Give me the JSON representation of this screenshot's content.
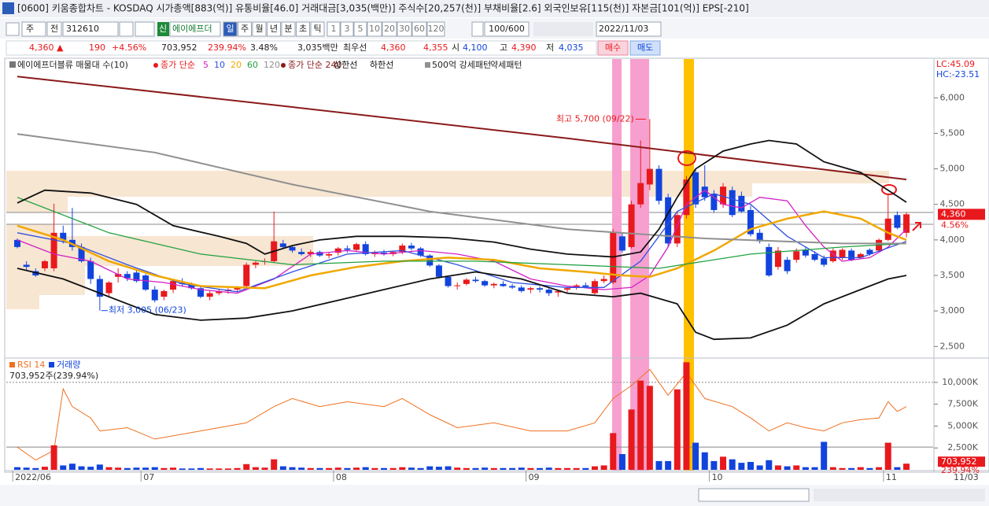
{
  "window": {
    "title": "[0600] 키움종합차트 - KOSDAQ 시가총액[883(억)] 유통비율[46.0] 거래대금[3,035(백만)] 주식수[20,257(천)] 부채비율[2.6] 외국인보유[115(천)] 자본금[101(억)] EPS[-210]"
  },
  "toolbar": {
    "period": "주",
    "scope": "전",
    "code": "312610",
    "new_badge": "신",
    "name": "에이에프더",
    "intervals": [
      "일",
      "주",
      "월",
      "년",
      "분",
      "초",
      "틱"
    ],
    "minutes": [
      "1",
      "3",
      "5",
      "10",
      "20",
      "30",
      "60",
      "120"
    ],
    "count": "100/600",
    "date": "2022/11/03"
  },
  "quote": {
    "price": "4,360",
    "arrow": "▲",
    "change": "190",
    "change_pct": "+4.56%",
    "volume": "703,952",
    "volume_ratio": "239.94%",
    "turnover_rate": "3.48%",
    "amount": "3,035백만",
    "best_label": "최우선",
    "ask": "4,360",
    "bid": "4,355",
    "open_label": "시",
    "open": "4,100",
    "high_label": "고",
    "high": "4,390",
    "low_label": "저",
    "low": "4,035",
    "buy": "매수",
    "sell": "매도"
  },
  "chart_data": [
    {
      "type": "candlestick",
      "legend_title": "에이에프더블류 매물대 수(10)",
      "ma_label": "종가 단순",
      "pattern_labels": [
        "500억 강세패턴",
        "약세패턴"
      ],
      "corner_labels": [
        "LC:45.09",
        "HC:-23.51"
      ],
      "up_color": "#e8191d",
      "down_color": "#1144dd",
      "categories": [
        "2022/06",
        null,
        null,
        null,
        null,
        null,
        null,
        null,
        null,
        null,
        null,
        null,
        null,
        null,
        "07",
        null,
        null,
        null,
        null,
        null,
        null,
        null,
        null,
        null,
        null,
        null,
        null,
        null,
        null,
        null,
        null,
        null,
        null,
        null,
        null,
        "08",
        null,
        null,
        null,
        null,
        null,
        null,
        null,
        null,
        null,
        null,
        null,
        null,
        null,
        null,
        null,
        null,
        null,
        null,
        null,
        null,
        "09",
        null,
        null,
        null,
        null,
        null,
        null,
        null,
        null,
        null,
        null,
        null,
        null,
        null,
        null,
        null,
        null,
        null,
        null,
        null,
        "10",
        null,
        null,
        null,
        null,
        null,
        null,
        null,
        null,
        null,
        null,
        null,
        null,
        null,
        null,
        null,
        null,
        null,
        null,
        "11",
        null,
        null
      ],
      "x_end_label": "11/03",
      "open": [
        4000,
        3650,
        3560,
        3600,
        3600,
        4100,
        4000,
        3900,
        3700,
        3450,
        3250,
        3480,
        3520,
        3540,
        3500,
        3300,
        3200,
        3300,
        3400,
        3380,
        3320,
        3200,
        3250,
        3280,
        3300,
        3350,
        3650,
        3690,
        3700,
        3950,
        3900,
        3830,
        3800,
        3830,
        3780,
        3820,
        3880,
        3860,
        3940,
        3800,
        3820,
        3800,
        3830,
        3920,
        3880,
        3780,
        3640,
        3480,
        3350,
        3380,
        3440,
        3420,
        3360,
        3380,
        3350,
        3330,
        3300,
        3320,
        3300,
        3260,
        3300,
        3330,
        3360,
        3250,
        3420,
        3400,
        4050,
        3900,
        4500,
        4780,
        5000,
        4600,
        3950,
        4350,
        4950,
        4750,
        4650,
        4500,
        4700,
        4620,
        4420,
        4100,
        3900,
        3620,
        3720,
        3720,
        3860,
        3800,
        3740,
        3700,
        3750,
        3850,
        3750,
        3860,
        3850,
        4000,
        4350,
        4100
      ],
      "high": [
        4020,
        3700,
        3600,
        3720,
        4510,
        4200,
        4450,
        3950,
        3750,
        3500,
        3420,
        3600,
        3560,
        3580,
        3520,
        3350,
        3300,
        3420,
        3460,
        3400,
        3340,
        3280,
        3300,
        3320,
        3350,
        3680,
        3700,
        3740,
        4400,
        4000,
        3920,
        3880,
        3860,
        3850,
        3820,
        3900,
        3920,
        3960,
        3980,
        3850,
        3860,
        3840,
        3950,
        3960,
        3900,
        3800,
        3660,
        3500,
        3400,
        3460,
        3480,
        3440,
        3400,
        3420,
        3380,
        3360,
        3340,
        3350,
        3320,
        3300,
        3340,
        3380,
        3400,
        3450,
        3500,
        4150,
        4100,
        4550,
        5400,
        5700,
        5050,
        4650,
        4400,
        4900,
        5000,
        5050,
        4700,
        4800,
        4750,
        4680,
        4480,
        4150,
        3950,
        3900,
        3760,
        3880,
        3900,
        3840,
        3780,
        3880,
        3880,
        3880,
        3820,
        3880,
        4020,
        4650,
        4400,
        4390
      ],
      "low": [
        3880,
        3580,
        3480,
        3560,
        3560,
        3950,
        3850,
        3680,
        3380,
        3005,
        3200,
        3400,
        3420,
        3400,
        3280,
        3120,
        3150,
        3250,
        3340,
        3300,
        3180,
        3150,
        3220,
        3240,
        3270,
        3330,
        3600,
        3650,
        3680,
        3880,
        3820,
        3780,
        3760,
        3760,
        3740,
        3780,
        3820,
        3840,
        3780,
        3760,
        3780,
        3770,
        3800,
        3850,
        3760,
        3620,
        3460,
        3330,
        3300,
        3360,
        3400,
        3340,
        3320,
        3340,
        3310,
        3260,
        3250,
        3260,
        3210,
        3200,
        3260,
        3300,
        3330,
        3230,
        3390,
        3380,
        3820,
        3880,
        4450,
        4700,
        4500,
        3900,
        3900,
        4300,
        4450,
        4550,
        4380,
        4450,
        4320,
        4380,
        4050,
        3950,
        3480,
        3580,
        3520,
        3680,
        3750,
        3700,
        3620,
        3680,
        3720,
        3700,
        3730,
        3780,
        3830,
        3980,
        4150,
        4035
      ],
      "close": [
        3900,
        3620,
        3500,
        3700,
        4100,
        4000,
        3900,
        3700,
        3450,
        3200,
        3400,
        3520,
        3460,
        3420,
        3300,
        3150,
        3280,
        3420,
        3380,
        3320,
        3200,
        3250,
        3280,
        3300,
        3330,
        3650,
        3680,
        3700,
        3980,
        3900,
        3850,
        3800,
        3830,
        3780,
        3800,
        3880,
        3860,
        3940,
        3800,
        3820,
        3800,
        3830,
        3920,
        3880,
        3780,
        3640,
        3480,
        3350,
        3360,
        3440,
        3420,
        3360,
        3380,
        3350,
        3330,
        3280,
        3320,
        3300,
        3250,
        3280,
        3320,
        3360,
        3340,
        3420,
        3450,
        4100,
        3850,
        4500,
        4800,
        5000,
        4550,
        3950,
        4350,
        4850,
        4500,
        4600,
        4420,
        4750,
        4350,
        4400,
        4080,
        3980,
        3500,
        3850,
        3560,
        3840,
        3780,
        3720,
        3650,
        3850,
        3860,
        3720,
        3800,
        3800,
        4000,
        4300,
        4170,
        4360
      ],
      "lines": [
        {
          "name": "5",
          "color": "#d41ec8",
          "x": [
            0,
            4,
            8,
            12,
            16,
            20,
            24,
            28,
            32,
            36,
            40,
            44,
            48,
            52,
            56,
            60,
            64,
            67,
            69,
            71,
            73,
            75,
            77,
            79,
            81,
            84,
            86,
            88,
            90,
            93,
            95,
            97
          ],
          "values": [
            4000,
            3800,
            3700,
            3450,
            3400,
            3300,
            3250,
            3450,
            3800,
            3850,
            3800,
            3850,
            3800,
            3700,
            3450,
            3350,
            3300,
            3330,
            3500,
            3900,
            4500,
            4700,
            4500,
            4450,
            4600,
            4550,
            4200,
            3900,
            3700,
            3750,
            3900,
            4150
          ]
        },
        {
          "name": "10",
          "color": "#3050e0",
          "x": [
            0,
            6,
            12,
            18,
            24,
            30,
            36,
            42,
            48,
            54,
            60,
            64,
            68,
            72,
            76,
            80,
            84,
            88,
            92,
            97
          ],
          "values": [
            4100,
            3950,
            3650,
            3380,
            3270,
            3550,
            3800,
            3850,
            3650,
            3400,
            3330,
            3330,
            3700,
            4400,
            4650,
            4500,
            4050,
            3750,
            3750,
            3980
          ]
        },
        {
          "name": "20",
          "color": "#f0a800",
          "x": [
            0,
            5,
            10,
            15,
            20,
            27,
            32,
            37,
            42,
            47,
            52,
            57,
            62,
            66,
            69,
            72,
            76,
            80,
            84,
            88,
            92,
            95,
            97
          ],
          "values": [
            4200,
            4000,
            3700,
            3500,
            3350,
            3320,
            3500,
            3620,
            3700,
            3750,
            3720,
            3600,
            3550,
            3500,
            3480,
            3600,
            3850,
            4150,
            4300,
            4400,
            4300,
            4100,
            4000
          ]
        },
        {
          "name": "60",
          "color": "#20a040",
          "x": [
            0,
            10,
            20,
            30,
            40,
            50,
            60,
            70,
            80,
            90,
            97
          ],
          "values": [
            4600,
            4100,
            3800,
            3650,
            3700,
            3700,
            3650,
            3600,
            3800,
            3900,
            3950
          ]
        },
        {
          "name": "120",
          "color": "#909090",
          "x": [
            0,
            15,
            30,
            45,
            60,
            75,
            90,
            97
          ],
          "values": [
            5490,
            5230,
            4780,
            4400,
            4150,
            4020,
            3950,
            3950
          ]
        },
        {
          "name": "종가 단순 240",
          "color": "#8b1a1a",
          "x": [
            0,
            30,
            60,
            90,
            97
          ],
          "values": [
            6300,
            5870,
            5430,
            4960,
            4850
          ]
        },
        {
          "name": "상한선",
          "color": "#111111",
          "x": [
            0,
            3,
            8,
            13,
            17,
            22,
            25,
            27,
            30,
            33,
            37,
            42,
            47,
            52,
            56,
            60,
            65,
            68,
            70,
            72,
            74,
            77,
            80,
            82,
            85,
            88,
            92,
            95,
            97
          ],
          "values": [
            4520,
            4700,
            4660,
            4500,
            4200,
            4050,
            3950,
            3800,
            3920,
            4000,
            4050,
            4050,
            4030,
            3970,
            3870,
            3800,
            3760,
            3830,
            4150,
            4600,
            5000,
            5250,
            5350,
            5400,
            5350,
            5100,
            4950,
            4700,
            4530
          ]
        },
        {
          "name": "하한선",
          "color": "#111111",
          "x": [
            0,
            5,
            10,
            15,
            20,
            25,
            30,
            35,
            40,
            45,
            50,
            55,
            60,
            65,
            68,
            72,
            74,
            76,
            80,
            84,
            88,
            92,
            95,
            97
          ],
          "values": [
            3600,
            3450,
            3200,
            2950,
            2870,
            2900,
            3000,
            3150,
            3300,
            3450,
            3550,
            3450,
            3250,
            3200,
            3250,
            3100,
            2700,
            2600,
            2620,
            2800,
            3100,
            3300,
            3450,
            3500
          ]
        }
      ],
      "annotations": [
        {
          "text": "최고 5,700 (09/22)",
          "index": 69,
          "value": 5700
        },
        {
          "text": "최저 3,005 (06/23)",
          "index": 9,
          "value": 3005
        }
      ],
      "last_price": {
        "value": 4360,
        "label": "4,360"
      },
      "last_change": "4.56%",
      "ylim": [
        2370,
        6380
      ],
      "yticks": [
        {
          "value": 2500,
          "label": "2,500"
        },
        {
          "value": 3000,
          "label": "3,000"
        },
        {
          "value": 3500,
          "label": "3,500"
        },
        {
          "value": 4000,
          "label": "4,000"
        },
        {
          "value": 4500,
          "label": "4,500"
        },
        {
          "value": 5000,
          "label": "5,000"
        },
        {
          "value": 5500,
          "label": "5,500"
        },
        {
          "value": 6000,
          "label": "6,000"
        }
      ]
    },
    {
      "type": "bar",
      "summary": "703,952주(239.94%)",
      "series": [
        {
          "name": "RSI 14",
          "color": "#f07020",
          "axis": "y2",
          "x": [
            0,
            2,
            4,
            5,
            6,
            8,
            9,
            12,
            15,
            20,
            25,
            28,
            30,
            33,
            36,
            40,
            42,
            45,
            48,
            52,
            56,
            60,
            63,
            65,
            67,
            69,
            71,
            73,
            75,
            78,
            80,
            82,
            84,
            86,
            88,
            90,
            92,
            94,
            95,
            96,
            97
          ],
          "values": [
            30,
            22,
            28,
            66,
            55,
            48,
            40,
            42,
            35,
            40,
            45,
            55,
            60,
            55,
            58,
            55,
            60,
            50,
            42,
            45,
            40,
            40,
            45,
            60,
            68,
            78,
            62,
            76,
            60,
            55,
            48,
            40,
            45,
            42,
            40,
            45,
            47,
            48,
            58,
            52,
            55
          ]
        },
        {
          "name": "거래량",
          "color": "#1144dd",
          "values": [
            300,
            250,
            200,
            350,
            2800,
            500,
            700,
            400,
            350,
            600,
            300,
            250,
            200,
            250,
            250,
            300,
            200,
            250,
            150,
            150,
            200,
            150,
            150,
            150,
            200,
            650,
            300,
            250,
            1200,
            400,
            300,
            250,
            200,
            200,
            200,
            250,
            200,
            250,
            300,
            200,
            200,
            200,
            300,
            250,
            200,
            400,
            350,
            400,
            250,
            200,
            200,
            250,
            200,
            200,
            200,
            250,
            200,
            200,
            250,
            200,
            200,
            200,
            200,
            400,
            500,
            4200,
            1800,
            6900,
            10200,
            9600,
            1000,
            1000,
            9200,
            12300,
            3100,
            2000,
            1000,
            1500,
            1200,
            800,
            900,
            500,
            1100,
            500,
            400,
            500,
            300,
            300,
            3200,
            300,
            200,
            200,
            300,
            200,
            300,
            3100,
            300,
            703.952
          ]
        }
      ],
      "rsi_levels": [
        30,
        70
      ],
      "last_volume": {
        "value": 703.952,
        "label": "703,952"
      },
      "last_ratio": "239.94%",
      "ylim": [
        0,
        12600
      ],
      "yticks": [
        {
          "value": 2500,
          "label": "2,500K"
        },
        {
          "value": 5000,
          "label": "5,000K"
        },
        {
          "value": 7500,
          "label": "7,500K"
        },
        {
          "value": 10000,
          "label": "10,000K"
        }
      ],
      "y2lim": [
        16,
        84
      ]
    }
  ]
}
